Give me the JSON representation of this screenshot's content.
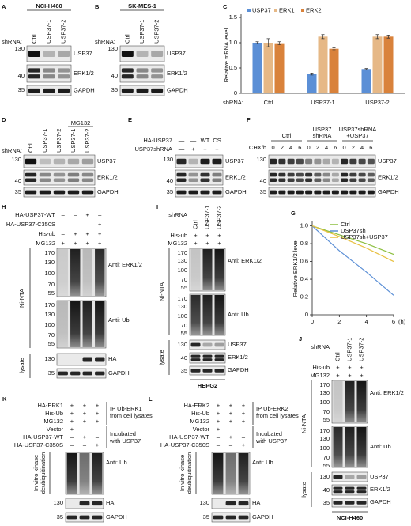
{
  "chart_data": [
    {
      "type": "bar",
      "panel": "C",
      "ylabel": "Relative mRNA level",
      "xlabel": "shRNA:",
      "categories": [
        "Ctrl",
        "USP37-1",
        "USP37-2"
      ],
      "series": [
        {
          "name": "USP37",
          "color": "#5b8fd6",
          "values": [
            1.0,
            0.38,
            0.48
          ],
          "errors": [
            0.02,
            0.02,
            0.01
          ]
        },
        {
          "name": "ERK1",
          "color": "#e6b886",
          "values": [
            1.0,
            1.12,
            1.12
          ],
          "errors": [
            0.08,
            0.04,
            0.04
          ]
        },
        {
          "name": "ERK2",
          "color": "#d9823b",
          "values": [
            0.99,
            0.88,
            1.12
          ],
          "errors": [
            0.03,
            0.02,
            0.03
          ]
        }
      ],
      "ylim": [
        0,
        1.5
      ],
      "yticks": [
        0,
        0.5,
        {
          "value": 1,
          "label": "1.0"
        },
        1.5
      ]
    },
    {
      "type": "line",
      "panel": "G",
      "ylabel": "Relative ERK1/2 level",
      "xlabel": "(h)",
      "x": [
        0,
        2,
        4,
        6
      ],
      "series": [
        {
          "name": "Ctrl",
          "color": "#8cbf3f",
          "values": [
            1.0,
            0.9,
            0.8,
            0.68
          ]
        },
        {
          "name": "USP37sh",
          "color": "#5b8fd6",
          "values": [
            1.0,
            0.72,
            0.48,
            0.22
          ]
        },
        {
          "name": "USP37sh+USP37",
          "color": "#e8c040",
          "values": [
            1.0,
            0.88,
            0.75,
            0.6
          ]
        }
      ],
      "xlim": [
        0,
        6
      ],
      "xticks": [
        0,
        2,
        4,
        6
      ],
      "ylim": [
        0,
        1.05
      ],
      "yticks": [
        0,
        0.2,
        0.4,
        0.6,
        0.8,
        {
          "value": 1,
          "label": "1.0"
        }
      ]
    }
  ],
  "panels": {
    "A": {
      "label": "A",
      "cell": "NCI-H460",
      "shrna": "shRNA:",
      "lanes": [
        "Ctrl",
        "USP37-1",
        "USP37-2"
      ],
      "markers": [
        "130",
        "40",
        "35"
      ],
      "blots": [
        "USP37",
        "ERK1/2",
        "GAPDH"
      ]
    },
    "B": {
      "label": "B",
      "cell": "SK-MES-1",
      "shrna": "shRNA:",
      "lanes": [
        "Ctrl",
        "USP37-1",
        "USP37-2"
      ],
      "markers": [
        "130",
        "40",
        "35"
      ],
      "blots": [
        "USP37",
        "ERK1/2",
        "GAPDH"
      ]
    },
    "D": {
      "label": "D",
      "shrna": "shRNA:",
      "lanes": [
        "Ctrl",
        "USP37-1",
        "USP37-2",
        "USP37-1",
        "USP37-2"
      ],
      "treatment": "MG132",
      "markers": [
        "130",
        "40",
        "35"
      ],
      "blots": [
        "USP37",
        "ERK1/2",
        "GAPDH"
      ]
    },
    "E": {
      "label": "E",
      "rows": [
        {
          "name": "HA-USP37",
          "values": [
            "—",
            "—",
            "WT",
            "CS"
          ]
        },
        {
          "name": "USP37shRNA",
          "values": [
            "—",
            "+",
            "+",
            "+"
          ]
        }
      ],
      "markers": [
        "130",
        "40",
        "35"
      ],
      "blots": [
        "USP37",
        "ERK1/2",
        "GAPDH"
      ]
    },
    "F": {
      "label": "F",
      "groups": [
        [
          "Ctrl"
        ],
        [
          "USP37",
          "shRNA"
        ],
        [
          "USP37shRNA",
          "+USP37"
        ]
      ],
      "chx": "CHX/h",
      "times": [
        "0",
        "2",
        "4",
        "6",
        "0",
        "2",
        "4",
        "6",
        "0",
        "2",
        "4",
        "6"
      ],
      "markers": [
        "130",
        "40",
        "35"
      ],
      "blots": [
        "USP37",
        "ERK1/2",
        "GAPDH"
      ]
    },
    "H": {
      "label": "H",
      "rows": [
        {
          "name": "HA-USP37-WT",
          "values": [
            "–",
            "–",
            "+",
            "–"
          ]
        },
        {
          "name": "HA-USP37-C350S",
          "values": [
            "–",
            "–",
            "–",
            "+"
          ]
        },
        {
          "name": "His-ub",
          "values": [
            "–",
            "+",
            "+",
            "+"
          ]
        },
        {
          "name": "MG132",
          "values": [
            "+",
            "+",
            "+",
            "+"
          ]
        }
      ],
      "pulldown": "Ni-NTA",
      "lysate": "lysate",
      "blots": [
        "Anti: ERK1/2",
        "Anti: Ub",
        "HA",
        "GAPDH"
      ],
      "markers_erk": [
        "170",
        "130",
        "100",
        "70",
        "55"
      ],
      "markers_ub": [
        "170",
        "130",
        "100",
        "70",
        "55"
      ],
      "markers_ha": [
        "130"
      ],
      "markers_gapdh": [
        "35"
      ]
    },
    "I": {
      "label": "I",
      "shrna": "shRNA",
      "lanes": [
        "Ctrl",
        "USP37-1",
        "USP37-2"
      ],
      "rows": [
        {
          "name": "His-ub",
          "values": [
            "+",
            "+",
            "+"
          ]
        },
        {
          "name": "MG132",
          "values": [
            "+",
            "+",
            "+"
          ]
        }
      ],
      "pulldown": "Ni-NTA",
      "lysate": "lysate",
      "ni_blots": [
        "Anti: ERK1/2",
        "Anti: Ub"
      ],
      "lysate_blots": [
        "USP37",
        "ERK1/2",
        "GAPDH"
      ],
      "markers_erk": [
        "170",
        "130",
        "100",
        "70",
        "55"
      ],
      "markers_ub": [
        "170",
        "130",
        "100",
        "70",
        "55"
      ],
      "markers_lysate": [
        "130",
        "40",
        "35"
      ],
      "cell": "HEPG2"
    },
    "J": {
      "label": "J",
      "shrna": "shRNA",
      "lanes": [
        "Ctrl",
        "USP37-1",
        "USP37-2"
      ],
      "rows": [
        {
          "name": "His-ub",
          "values": [
            "+",
            "+",
            "+"
          ]
        },
        {
          "name": "MG132",
          "values": [
            "+",
            "+",
            "+"
          ]
        }
      ],
      "pulldown": "Ni-NTA",
      "lysate": "lysate",
      "ni_blots": [
        "Anti: ERK1/2",
        "Anti: Ub"
      ],
      "lysate_blots": [
        "USP37",
        "ERK1/2",
        "GAPDH"
      ],
      "markers_erk": [
        "170",
        "130",
        "100",
        "70",
        "55"
      ],
      "markers_ub": [
        "170",
        "130",
        "100",
        "70",
        "55"
      ],
      "markers_lysate": [
        "130",
        "40",
        "35"
      ],
      "cell": "NCI-H460"
    },
    "K": {
      "label": "K",
      "rows": [
        {
          "name": "HA-ERK1",
          "values": [
            "+",
            "+",
            "+"
          ]
        },
        {
          "name": "His-Ub",
          "values": [
            "+",
            "+",
            "+"
          ]
        },
        {
          "name": "MG132",
          "values": [
            "+",
            "+",
            "+"
          ]
        },
        {
          "name": "Vector",
          "values": [
            "+",
            "–",
            "–"
          ]
        },
        {
          "name": "HA-USP37-WT",
          "values": [
            "–",
            "+",
            "–"
          ]
        },
        {
          "name": "HA-USP37-C350S",
          "values": [
            "–",
            "–",
            "+"
          ]
        }
      ],
      "note1": [
        "IP Ub-ERK1",
        "from cell lysates"
      ],
      "note2": [
        "Incubated",
        "with USP37"
      ],
      "side": [
        "In vitro kinase",
        "deubiquitination"
      ],
      "blots": [
        "Anti: Ub",
        "HA",
        "GAPDH"
      ],
      "markers": [
        "130",
        "35"
      ]
    },
    "L": {
      "label": "L",
      "rows": [
        {
          "name": "HA-ERK2",
          "values": [
            "+",
            "+",
            "+"
          ]
        },
        {
          "name": "His-Ub",
          "values": [
            "+",
            "+",
            "+"
          ]
        },
        {
          "name": "MG132",
          "values": [
            "+",
            "+",
            "+"
          ]
        },
        {
          "name": "Vector",
          "values": [
            "+",
            "–",
            "–"
          ]
        },
        {
          "name": "HA-USP37-WT",
          "values": [
            "–",
            "+",
            "–"
          ]
        },
        {
          "name": "HA-USP37-C350S",
          "values": [
            "–",
            "–",
            "+"
          ]
        }
      ],
      "note1": [
        "IP Ub-ERK2",
        "from cell lysates"
      ],
      "note2": [
        "Incubated",
        "with USP37"
      ],
      "side": [
        "In vitro kinase",
        "deubiquitination"
      ],
      "blots": [
        "Anti: Ub",
        "HA",
        "GAPDH"
      ],
      "markers": [
        "130",
        "35"
      ]
    }
  }
}
